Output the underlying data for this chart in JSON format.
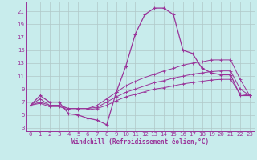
{
  "title": "",
  "xlabel": "Windchill (Refroidissement éolien,°C)",
  "background_color": "#c8ecec",
  "grid_color": "#b0c8c8",
  "line_color": "#993399",
  "xlim": [
    -0.5,
    23.5
  ],
  "ylim": [
    2.5,
    22.5
  ],
  "xticks": [
    0,
    1,
    2,
    3,
    4,
    5,
    6,
    7,
    8,
    9,
    10,
    11,
    12,
    13,
    14,
    15,
    16,
    17,
    18,
    19,
    20,
    21,
    22,
    23
  ],
  "yticks": [
    3,
    5,
    7,
    9,
    11,
    13,
    15,
    17,
    19,
    21
  ],
  "series": [
    [
      6.5,
      8.0,
      7.0,
      7.0,
      5.2,
      5.0,
      4.5,
      4.2,
      3.5,
      8.5,
      12.5,
      17.5,
      20.5,
      21.5,
      21.5,
      20.5,
      15.0,
      14.5,
      12.2,
      11.5,
      11.2,
      11.2,
      8.0,
      8.0
    ],
    [
      6.5,
      7.5,
      6.5,
      6.5,
      6.0,
      6.0,
      6.0,
      6.5,
      7.5,
      8.5,
      9.5,
      10.2,
      10.8,
      11.3,
      11.8,
      12.2,
      12.7,
      13.0,
      13.2,
      13.5,
      13.5,
      13.5,
      10.5,
      8.0
    ],
    [
      6.5,
      7.0,
      6.5,
      6.5,
      6.0,
      6.0,
      6.0,
      6.2,
      7.0,
      7.8,
      8.5,
      9.0,
      9.5,
      10.0,
      10.3,
      10.7,
      11.0,
      11.3,
      11.5,
      11.7,
      11.8,
      11.8,
      9.0,
      8.0
    ],
    [
      6.5,
      6.8,
      6.3,
      6.3,
      5.8,
      5.8,
      5.8,
      6.0,
      6.5,
      7.2,
      7.8,
      8.2,
      8.6,
      9.0,
      9.2,
      9.5,
      9.8,
      10.0,
      10.2,
      10.4,
      10.5,
      10.5,
      8.3,
      8.0
    ]
  ]
}
